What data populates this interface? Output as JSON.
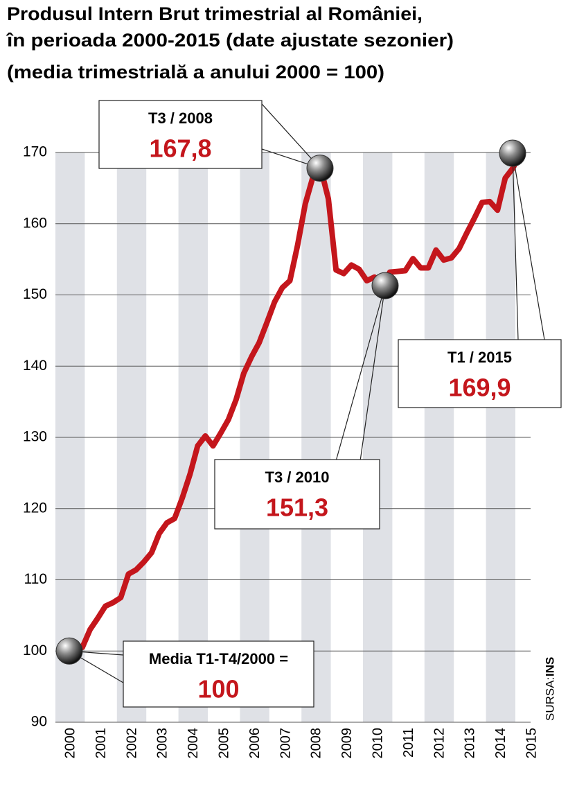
{
  "chart_data": {
    "type": "line",
    "title": [
      "Produsul Intern Brut trimestrial al României,",
      "în perioada 2000-2015 (date ajustate sezonier)",
      "(media trimestrială a anului 2000 = 100)"
    ],
    "categories": [
      "2000",
      null,
      null,
      null,
      "2001",
      null,
      null,
      null,
      "2002",
      null,
      null,
      null,
      "2003",
      null,
      null,
      null,
      "2004",
      null,
      null,
      null,
      "2005",
      null,
      null,
      null,
      "2006",
      null,
      null,
      null,
      "2007",
      null,
      null,
      null,
      "2008",
      null,
      null,
      null,
      "2009",
      null,
      null,
      null,
      "2010",
      null,
      null,
      null,
      "2011",
      null,
      null,
      null,
      "2012",
      null,
      null,
      null,
      "2013",
      null,
      null,
      null,
      "2014",
      null,
      null,
      null,
      "2015"
    ],
    "values": [
      99.5,
      99.8,
      100.2,
      100.5,
      103.0,
      104.6,
      106.3,
      106.8,
      107.5,
      110.8,
      111.4,
      112.5,
      113.8,
      116.5,
      118.0,
      118.6,
      121.5,
      124.8,
      128.8,
      130.2,
      128.8,
      130.6,
      132.5,
      135.3,
      139.0,
      141.3,
      143.3,
      146.1,
      149.0,
      151.0,
      152.0,
      157.0,
      162.8,
      166.6,
      167.8,
      163.5,
      153.5,
      153.0,
      154.2,
      153.6,
      152.0,
      152.5,
      151.3,
      153.2,
      153.3,
      153.4,
      155.1,
      153.8,
      153.8,
      156.3,
      154.9,
      155.2,
      156.5,
      158.7,
      160.8,
      163.0,
      163.1,
      161.9,
      166.4,
      167.8,
      169.9
    ],
    "color": "#c4161c",
    "ylim": [
      90,
      170
    ],
    "yticks": [
      90,
      100,
      110,
      120,
      130,
      140,
      150,
      160,
      170
    ],
    "grid": true,
    "annotations": [
      {
        "label": "T3 / 2008",
        "value": 167.8,
        "value_label": "167,8"
      },
      {
        "label": "T3 / 2010",
        "value": 151.3,
        "value_label": "151,3"
      },
      {
        "label": "T1 / 2015",
        "value": 169.9,
        "value_label": "169,9"
      },
      {
        "label": "Media T1-T4/2000 =",
        "value": 100,
        "value_label": "100"
      }
    ],
    "source_label": "SURSA:",
    "source": "INS"
  }
}
